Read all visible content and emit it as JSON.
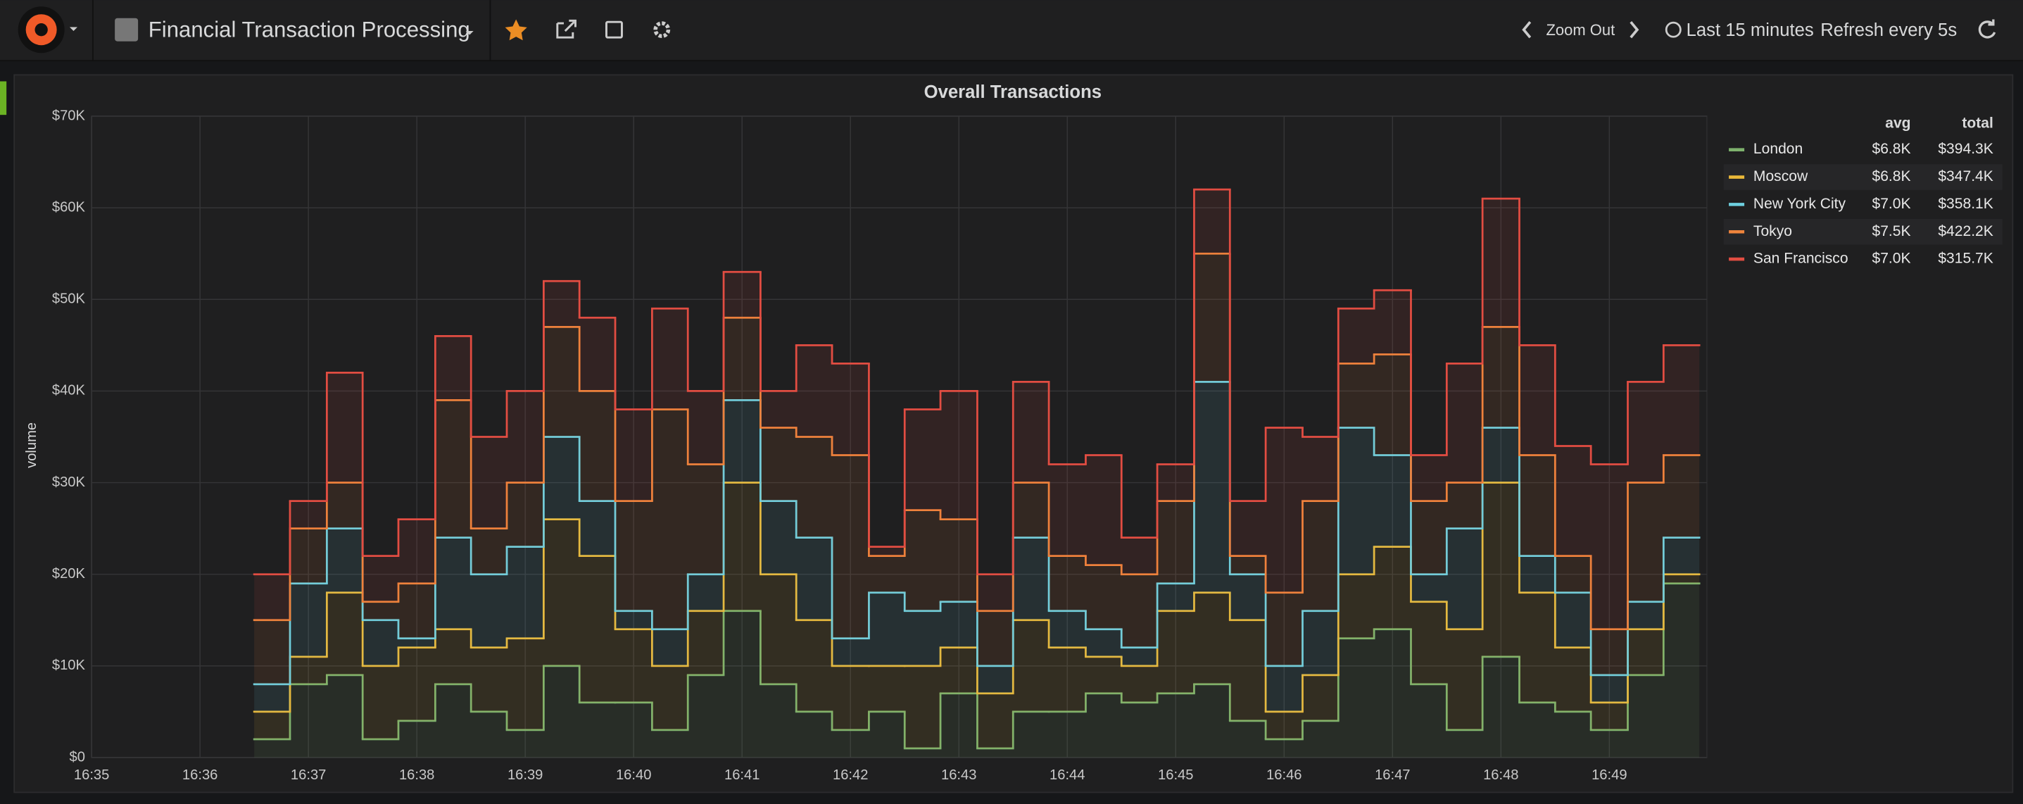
{
  "header": {
    "title": "Financial Transaction Processing",
    "zoom": "Zoom Out",
    "time_range": "Last 15 minutes",
    "refresh": "Refresh every 5s"
  },
  "chart_data": {
    "type": "line",
    "title": "Overall Transactions",
    "ylabel": "volume",
    "stacked": true,
    "step": true,
    "fill": true,
    "grid": true,
    "legend": {
      "position": "right",
      "columns": [
        "avg",
        "total"
      ]
    },
    "x": [
      996.5,
      996.83,
      997.17,
      997.5,
      997.83,
      998.17,
      998.5,
      998.83,
      999.17,
      999.5,
      999.83,
      1000.17,
      1000.5,
      1000.83,
      1001.17,
      1001.5,
      1001.83,
      1002.17,
      1002.5,
      1002.83,
      1003.17,
      1003.5,
      1003.83,
      1004.17,
      1004.5,
      1004.83,
      1005.17,
      1005.5,
      1005.83,
      1006.17,
      1006.5,
      1006.83,
      1007.17,
      1007.5,
      1007.83,
      1008.17,
      1008.5,
      1008.83,
      1009.17,
      1009.5
    ],
    "xlim": [
      995,
      1009.9
    ],
    "xticks": [
      {
        "value": 995,
        "label": "16:35"
      },
      {
        "value": 996,
        "label": "16:36"
      },
      {
        "value": 997,
        "label": "16:37"
      },
      {
        "value": 998,
        "label": "16:38"
      },
      {
        "value": 999,
        "label": "16:39"
      },
      {
        "value": 1000,
        "label": "16:40"
      },
      {
        "value": 1001,
        "label": "16:41"
      },
      {
        "value": 1002,
        "label": "16:42"
      },
      {
        "value": 1003,
        "label": "16:43"
      },
      {
        "value": 1004,
        "label": "16:44"
      },
      {
        "value": 1005,
        "label": "16:45"
      },
      {
        "value": 1006,
        "label": "16:46"
      },
      {
        "value": 1007,
        "label": "16:47"
      },
      {
        "value": 1008,
        "label": "16:48"
      },
      {
        "value": 1009,
        "label": "16:49"
      }
    ],
    "ylim": [
      0,
      70000
    ],
    "yticks": [
      {
        "value": 0,
        "label": "$0"
      },
      {
        "value": 10000,
        "label": "$10K"
      },
      {
        "value": 20000,
        "label": "$20K"
      },
      {
        "value": 30000,
        "label": "$30K"
      },
      {
        "value": 40000,
        "label": "$40K"
      },
      {
        "value": 50000,
        "label": "$50K"
      },
      {
        "value": 60000,
        "label": "$60K"
      },
      {
        "value": 70000,
        "label": "$70K"
      }
    ],
    "series": [
      {
        "name": "London",
        "color": "#7eb26d",
        "avg": "$6.8K",
        "total": "$394.3K",
        "values": [
          2000,
          8000,
          9000,
          2000,
          4000,
          8000,
          5000,
          3000,
          10000,
          6000,
          6000,
          3000,
          9000,
          16000,
          8000,
          5000,
          3000,
          5000,
          1000,
          7000,
          1000,
          5000,
          5000,
          7000,
          6000,
          7000,
          8000,
          4000,
          2000,
          4000,
          13000,
          14000,
          8000,
          3000,
          11000,
          6000,
          5000,
          3000,
          9000,
          19000
        ]
      },
      {
        "name": "Moscow",
        "color": "#eab839",
        "avg": "$6.8K",
        "total": "$347.4K",
        "values": [
          3000,
          3000,
          9000,
          8000,
          8000,
          6000,
          7000,
          10000,
          16000,
          16000,
          8000,
          7000,
          7000,
          14000,
          12000,
          10000,
          7000,
          5000,
          9000,
          5000,
          6000,
          10000,
          7000,
          4000,
          4000,
          9000,
          10000,
          11000,
          3000,
          5000,
          7000,
          9000,
          9000,
          11000,
          19000,
          12000,
          7000,
          3000,
          5000,
          1000
        ]
      },
      {
        "name": "New York City",
        "color": "#6ed0e0",
        "avg": "$7.0K",
        "total": "$358.1K",
        "values": [
          3000,
          8000,
          7000,
          5000,
          1000,
          10000,
          8000,
          10000,
          9000,
          6000,
          2000,
          4000,
          4000,
          9000,
          8000,
          9000,
          3000,
          8000,
          6000,
          5000,
          3000,
          9000,
          4000,
          3000,
          2000,
          3000,
          23000,
          5000,
          5000,
          7000,
          16000,
          10000,
          3000,
          11000,
          6000,
          4000,
          6000,
          3000,
          3000,
          4000
        ]
      },
      {
        "name": "Tokyo",
        "color": "#ef843c",
        "avg": "$7.5K",
        "total": "$422.2K",
        "values": [
          7000,
          6000,
          5000,
          2000,
          6000,
          15000,
          5000,
          7000,
          12000,
          12000,
          12000,
          24000,
          12000,
          9000,
          8000,
          11000,
          20000,
          4000,
          11000,
          9000,
          6000,
          6000,
          6000,
          7000,
          8000,
          9000,
          14000,
          2000,
          8000,
          12000,
          7000,
          11000,
          8000,
          5000,
          11000,
          11000,
          4000,
          5000,
          13000,
          9000
        ]
      },
      {
        "name": "San Francisco",
        "color": "#e24d42",
        "avg": "$7.0K",
        "total": "$315.7K",
        "values": [
          5000,
          3000,
          12000,
          5000,
          7000,
          7000,
          10000,
          10000,
          5000,
          8000,
          10000,
          11000,
          8000,
          5000,
          4000,
          10000,
          10000,
          1000,
          11000,
          14000,
          4000,
          11000,
          10000,
          12000,
          4000,
          4000,
          7000,
          6000,
          18000,
          7000,
          6000,
          7000,
          5000,
          13000,
          14000,
          12000,
          12000,
          18000,
          11000,
          12000
        ]
      }
    ]
  }
}
